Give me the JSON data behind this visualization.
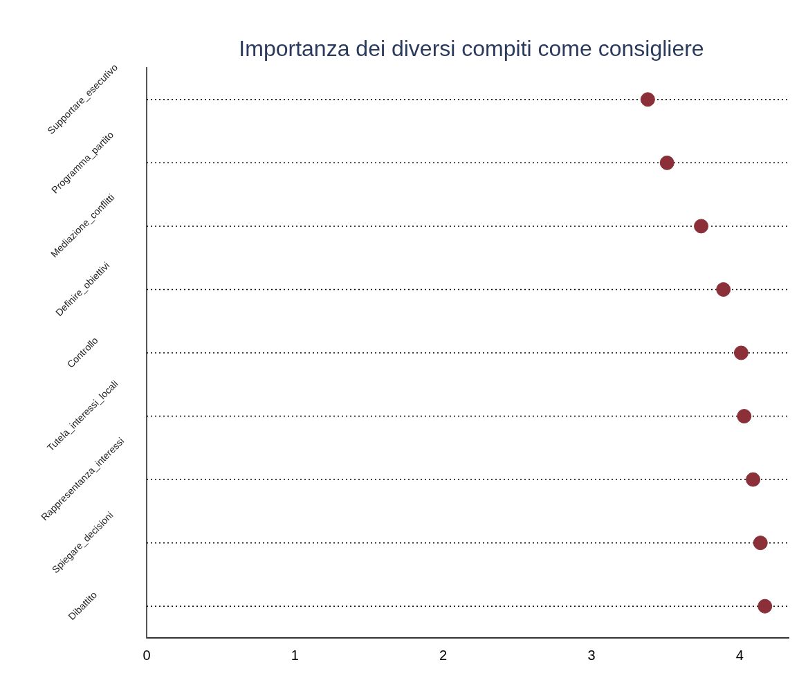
{
  "chart_data": {
    "type": "scatter",
    "orientation": "horizontal",
    "title": "Importanza dei diversi compiti come consigliere",
    "categories": [
      "Supportare_esecutivo",
      "Programma_partito",
      "Mediazione_conflitti",
      "Definire_obiettivi",
      "Controllo",
      "Tutela_interessi_locali",
      "Rappresentanza_interessi",
      "Spiegare_decisioni",
      "Dibattito"
    ],
    "values": [
      3.38,
      3.51,
      3.74,
      3.89,
      4.01,
      4.03,
      4.09,
      4.14,
      4.17
    ],
    "color": "#8b3038",
    "marker": "circle",
    "grid": "y",
    "xlim": [
      0,
      4.33
    ],
    "xticks": [
      0,
      1,
      2,
      3,
      4
    ]
  }
}
